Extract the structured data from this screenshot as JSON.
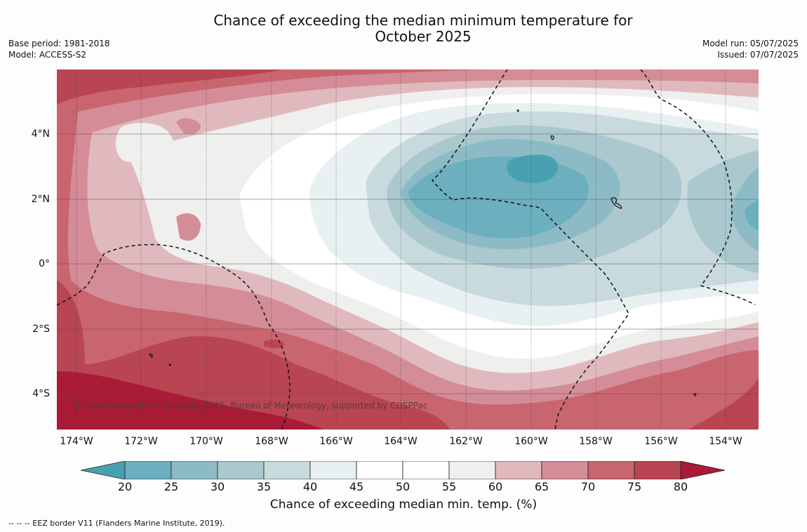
{
  "title": "Chance of exceeding the median minimum temperature for\nOctober 2025",
  "title_line1": "Chance of exceeding the median minimum temperature for",
  "title_line2": "October 2025",
  "meta_left": {
    "base_period": "Base period: 1981-2018",
    "model": "Model: ACCESS-S2"
  },
  "meta_right": {
    "model_run": "Model run: 05/07/2025",
    "issued": "Issued: 07/07/2025"
  },
  "copyright": "© Commonwealth of Australia 2025, Bureau of Meteorology, supported by COSPPac",
  "latitude_labels": [
    "4°N",
    "2°N",
    "0°",
    "2°S",
    "4°S"
  ],
  "longitude_labels": [
    "174°W",
    "172°W",
    "170°W",
    "168°W",
    "166°W",
    "164°W",
    "162°W",
    "160°W",
    "158°W",
    "156°W",
    "154°W"
  ],
  "colorbar": {
    "title": "Chance of exceeding median min. temp. (%)",
    "ticks": [
      "20",
      "25",
      "30",
      "35",
      "40",
      "45",
      "50",
      "55",
      "60",
      "65",
      "70",
      "75",
      "80"
    ],
    "colors": [
      "#48a1b1",
      "#6cafbe",
      "#8cbbc6",
      "#aac8cd",
      "#c8dadd",
      "#e9f0f2",
      "#ffffff",
      "#ffffff",
      "#efefee",
      "#e0b9be",
      "#d48c96",
      "#c9656f",
      "#b94552",
      "#a91b36"
    ]
  },
  "eez_legend": "--  --  -- EEZ border V11 (Flanders Marine Institute, 2019).",
  "colors": {
    "land_outline": "#111111",
    "eez_line": "#111111",
    "gridline": "#333333"
  }
}
